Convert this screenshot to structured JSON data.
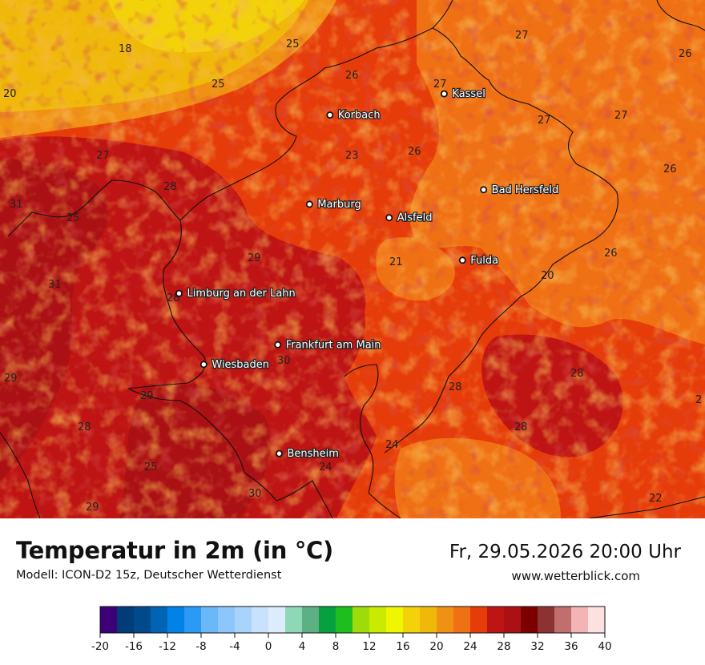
{
  "title": "Temperatur in 2m (in °C)",
  "subtitle": "Modell: ICON-D2 15z, Deutscher Wetterdienst",
  "datetime": "Fr, 29.05.2026 20:00 Uhr",
  "website": "www.wetterblick.com",
  "cities": [
    {
      "name": "Kassel",
      "lon_x": 0.63,
      "lat_y": 0.181
    },
    {
      "name": "Korbach",
      "lon_x": 0.468,
      "lat_y": 0.222
    },
    {
      "name": "Bad Hersfeld",
      "lon_x": 0.686,
      "lat_y": 0.366
    },
    {
      "name": "Marburg",
      "lon_x": 0.439,
      "lat_y": 0.394
    },
    {
      "name": "Alsfeld",
      "lon_x": 0.552,
      "lat_y": 0.42
    },
    {
      "name": "Fulda",
      "lon_x": 0.656,
      "lat_y": 0.502
    },
    {
      "name": "Limburg an der Lahn",
      "lon_x": 0.254,
      "lat_y": 0.566
    },
    {
      "name": "Frankfurt am Main",
      "lon_x": 0.394,
      "lat_y": 0.665
    },
    {
      "name": "Wiesbaden",
      "lon_x": 0.289,
      "lat_y": 0.703
    },
    {
      "name": "Bensheim",
      "lon_x": 0.396,
      "lat_y": 0.875
    }
  ],
  "isotherm_labels": [
    "18",
    "25",
    "27",
    "26",
    "20",
    "25",
    "26",
    "27",
    "27",
    "27",
    "23",
    "26",
    "26",
    "27",
    "28",
    "31",
    "25",
    "29",
    "31",
    "21",
    "26",
    "20",
    "28",
    "30",
    "29",
    "29",
    "28",
    "28",
    "28",
    "25",
    "28",
    "24",
    "24",
    "30",
    "29",
    "22",
    "2"
  ],
  "legend": {
    "colors": [
      "#3d0078",
      "#003c78",
      "#004a8c",
      "#0064b4",
      "#0082e6",
      "#2a9af5",
      "#6ab8f8",
      "#8cc6fa",
      "#a8d4fc",
      "#c8e2fd",
      "#dcecfd",
      "#8ed8b8",
      "#5cb084",
      "#07a040",
      "#1ebe1e",
      "#9edb0a",
      "#c8eb00",
      "#f0f500",
      "#f3d20a",
      "#f0b90a",
      "#f09114",
      "#f07014",
      "#e63c0a",
      "#be1414",
      "#aa1014",
      "#7d0000",
      "#8c3232",
      "#c06e6e",
      "#f2b4b4",
      "#fde0e0"
    ],
    "ticks": [
      "-20",
      "-16",
      "-12",
      "-8",
      "-4",
      "0",
      "4",
      "8",
      "12",
      "16",
      "20",
      "24",
      "28",
      "32",
      "36",
      "40"
    ],
    "min": -20,
    "max": 40
  }
}
